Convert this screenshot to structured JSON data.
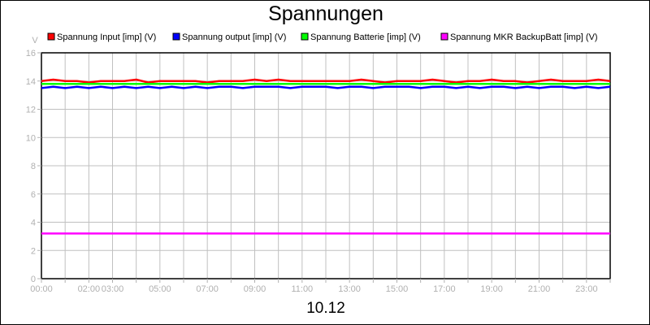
{
  "chart_data": {
    "type": "line",
    "title": "Spannungen",
    "xlabel": "10.12",
    "ylabel": "V",
    "ylim": [
      0,
      16
    ],
    "yticks": [
      "0",
      "2",
      "4",
      "6",
      "8",
      "10",
      "12",
      "14",
      "16"
    ],
    "xlim": [
      "00:00",
      "24:00"
    ],
    "xticks": [
      {
        "label": "00:00",
        "hour": 0
      },
      {
        "label": "02:00",
        "hour": 2
      },
      {
        "label": "03:00",
        "hour": 3
      },
      {
        "label": "05:00",
        "hour": 5
      },
      {
        "label": "07:00",
        "hour": 7
      },
      {
        "label": "09:00",
        "hour": 9
      },
      {
        "label": "11:00",
        "hour": 11
      },
      {
        "label": "13:00",
        "hour": 13
      },
      {
        "label": "15:00",
        "hour": 15
      },
      {
        "label": "17:00",
        "hour": 17
      },
      {
        "label": "19:00",
        "hour": 19
      },
      {
        "label": "21:00",
        "hour": 21
      },
      {
        "label": "23:00",
        "hour": 23
      }
    ],
    "grid": true,
    "legend_position": "top",
    "x_hours": [
      0,
      0.5,
      1,
      1.5,
      2,
      2.5,
      3,
      3.5,
      4,
      4.5,
      5,
      5.5,
      6,
      6.5,
      7,
      7.5,
      8,
      8.5,
      9,
      9.5,
      10,
      10.5,
      11,
      11.5,
      12,
      12.5,
      13,
      13.5,
      14,
      14.5,
      15,
      15.5,
      16,
      16.5,
      17,
      17.5,
      18,
      18.5,
      19,
      19.5,
      20,
      20.5,
      21,
      21.5,
      22,
      22.5,
      23,
      23.5,
      24
    ],
    "series": [
      {
        "name": "Spannung Input [imp] (V)",
        "color": "#ff0000",
        "values": [
          14.0,
          14.1,
          14.0,
          14.0,
          13.9,
          14.0,
          14.0,
          14.0,
          14.1,
          13.9,
          14.0,
          14.0,
          14.0,
          14.0,
          13.9,
          14.0,
          14.0,
          14.0,
          14.1,
          14.0,
          14.1,
          14.0,
          14.0,
          14.0,
          14.0,
          14.0,
          14.0,
          14.1,
          14.0,
          13.9,
          14.0,
          14.0,
          14.0,
          14.1,
          14.0,
          13.9,
          14.0,
          14.0,
          14.1,
          14.0,
          14.0,
          13.9,
          14.0,
          14.1,
          14.0,
          14.0,
          14.0,
          14.1,
          14.0
        ]
      },
      {
        "name": "Spannung output [imp] (V)",
        "color": "#0000ff",
        "values": [
          13.5,
          13.6,
          13.5,
          13.6,
          13.5,
          13.6,
          13.5,
          13.6,
          13.5,
          13.6,
          13.5,
          13.6,
          13.5,
          13.6,
          13.5,
          13.6,
          13.6,
          13.5,
          13.6,
          13.6,
          13.6,
          13.5,
          13.6,
          13.6,
          13.6,
          13.5,
          13.6,
          13.6,
          13.5,
          13.6,
          13.6,
          13.6,
          13.5,
          13.6,
          13.6,
          13.5,
          13.6,
          13.5,
          13.6,
          13.6,
          13.5,
          13.6,
          13.5,
          13.6,
          13.6,
          13.5,
          13.6,
          13.5,
          13.6
        ]
      },
      {
        "name": "Spannung Batterie [imp] (V)",
        "color": "#00ff00",
        "values": [
          13.8,
          13.8,
          13.8,
          13.8,
          13.8,
          13.8,
          13.8,
          13.8,
          13.8,
          13.8,
          13.8,
          13.8,
          13.8,
          13.8,
          13.8,
          13.8,
          13.8,
          13.8,
          13.8,
          13.8,
          13.8,
          13.8,
          13.8,
          13.8,
          13.8,
          13.8,
          13.8,
          13.8,
          13.8,
          13.8,
          13.8,
          13.8,
          13.8,
          13.8,
          13.8,
          13.8,
          13.8,
          13.8,
          13.8,
          13.8,
          13.8,
          13.8,
          13.8,
          13.8,
          13.8,
          13.8,
          13.8,
          13.8,
          13.8
        ]
      },
      {
        "name": "Spannung MKR BackupBatt [imp] (V)",
        "color": "#ff00ff",
        "values": [
          3.2,
          3.2,
          3.2,
          3.2,
          3.2,
          3.2,
          3.2,
          3.2,
          3.2,
          3.2,
          3.2,
          3.2,
          3.2,
          3.2,
          3.2,
          3.2,
          3.2,
          3.2,
          3.2,
          3.2,
          3.2,
          3.2,
          3.2,
          3.2,
          3.2,
          3.2,
          3.2,
          3.2,
          3.2,
          3.2,
          3.2,
          3.2,
          3.2,
          3.2,
          3.2,
          3.2,
          3.2,
          3.2,
          3.2,
          3.2,
          3.2,
          3.2,
          3.2,
          3.2,
          3.2,
          3.2,
          3.2,
          3.2,
          3.2
        ]
      }
    ]
  }
}
